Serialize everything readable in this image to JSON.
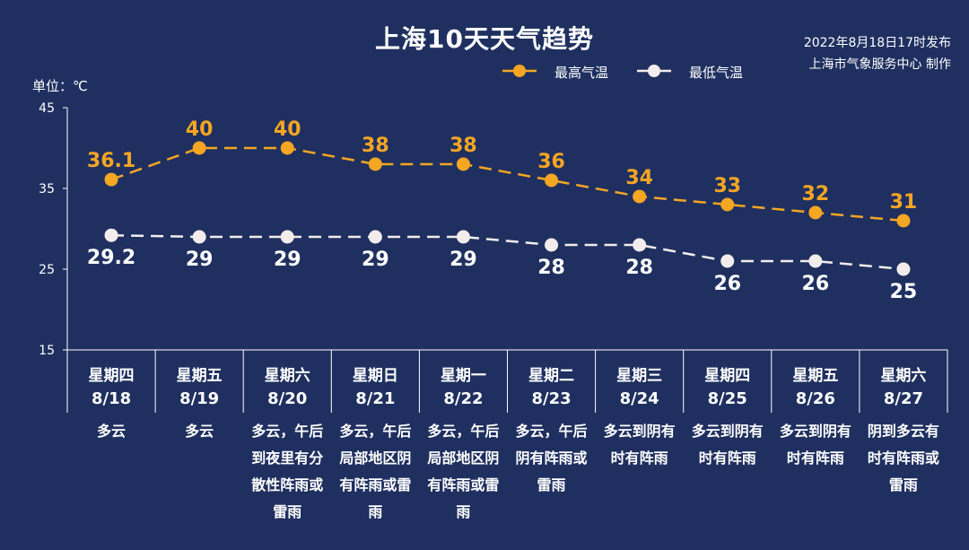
{
  "title": "上海10天天气趋势",
  "publish": {
    "line1": "2022年8月18日17时发布",
    "line2": "上海市气象服务中心 制作"
  },
  "unit_label": "单位：℃",
  "colors": {
    "background": "#1f3060",
    "high": "#f5a623",
    "low": "#f3ecec",
    "text": "#ffffff"
  },
  "chart_data": {
    "type": "line",
    "title": "上海10天天气趋势",
    "ylabel": "单位：℃",
    "ylim": [
      15,
      45
    ],
    "yticks": [
      15,
      25,
      35,
      45
    ],
    "legend": "top-center",
    "categories": [
      "8/18",
      "8/19",
      "8/20",
      "8/21",
      "8/22",
      "8/23",
      "8/24",
      "8/25",
      "8/26",
      "8/27"
    ],
    "weekdays": [
      "星期四",
      "星期五",
      "星期六",
      "星期日",
      "星期一",
      "星期二",
      "星期三",
      "星期四",
      "星期五",
      "星期六"
    ],
    "weather": [
      "多云",
      "多云",
      "多云，午后到夜里有分散性阵雨或雷雨",
      "多云，午后局部地区阴有阵雨或雷雨",
      "多云，午后局部地区阴有阵雨或雷雨",
      "多云，午后阴有阵雨或雷雨",
      "多云到阴有时有阵雨",
      "多云到阴有时有阵雨",
      "多云到阴有时有阵雨",
      "阴到多云有时有阵雨或雷雨"
    ],
    "series": [
      {
        "name": "最高气温",
        "values": [
          36.1,
          40,
          40,
          38,
          38,
          36,
          34,
          33,
          32,
          31
        ],
        "labels": [
          "36.1",
          "40",
          "40",
          "38",
          "38",
          "36",
          "34",
          "33",
          "32",
          "31"
        ]
      },
      {
        "name": "最低气温",
        "values": [
          29.2,
          29,
          29,
          29,
          29,
          28,
          28,
          26,
          26,
          25
        ],
        "labels": [
          "29.2",
          "29",
          "29",
          "29",
          "29",
          "28",
          "28",
          "26",
          "26",
          "25"
        ]
      }
    ]
  }
}
